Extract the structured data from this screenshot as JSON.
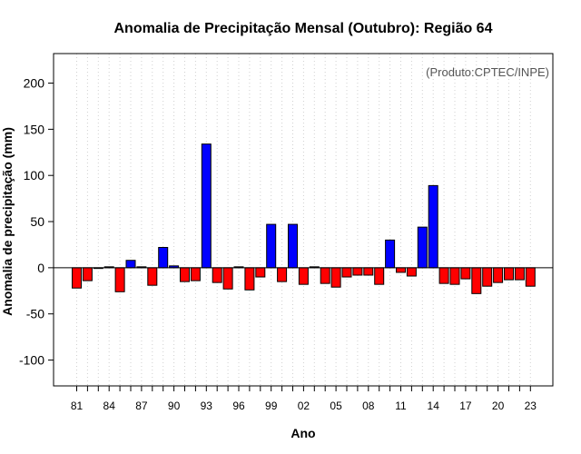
{
  "chart_data": {
    "type": "bar",
    "title": "Anomalia de Precipitação Mensal (Outubro): Região 64",
    "xlabel": "Ano",
    "ylabel": "Anomalia de precipitação (mm)",
    "annotation": "(Produto:CPTEC/INPE)",
    "ylim": [
      -128,
      232
    ],
    "yticks": [
      -100,
      -50,
      0,
      50,
      100,
      150,
      200
    ],
    "xtick_labels": [
      "81",
      "84",
      "87",
      "90",
      "93",
      "96",
      "99",
      "02",
      "05",
      "08",
      "11",
      "14",
      "17",
      "20",
      "23"
    ],
    "grid": "vertical dotted",
    "colors": {
      "positive": "#0000ff",
      "negative": "#ff0000",
      "bar_edge": "#000000",
      "zero_line": "#000000",
      "grid": "#d0d0d0"
    },
    "years": [
      1981,
      1982,
      1983,
      1984,
      1985,
      1986,
      1987,
      1988,
      1989,
      1990,
      1991,
      1992,
      1993,
      1994,
      1995,
      1996,
      1997,
      1998,
      1999,
      2000,
      2001,
      2002,
      2003,
      2004,
      2005,
      2006,
      2007,
      2008,
      2009,
      2010,
      2011,
      2012,
      2013,
      2014,
      2015,
      2016,
      2017,
      2018,
      2019,
      2020,
      2021,
      2022,
      2023
    ],
    "values": [
      -22,
      -14,
      0,
      1,
      -26,
      8,
      1,
      -19,
      22,
      2,
      -15,
      -14,
      134,
      -16,
      -23,
      1,
      -24,
      -10,
      47,
      -15,
      47,
      -18,
      1,
      -17,
      -21,
      -10,
      -8,
      -8,
      -18,
      30,
      -5,
      -9,
      44,
      89,
      -17,
      -18,
      -12,
      -28,
      -20,
      -16,
      -13,
      -13,
      -20
    ]
  }
}
